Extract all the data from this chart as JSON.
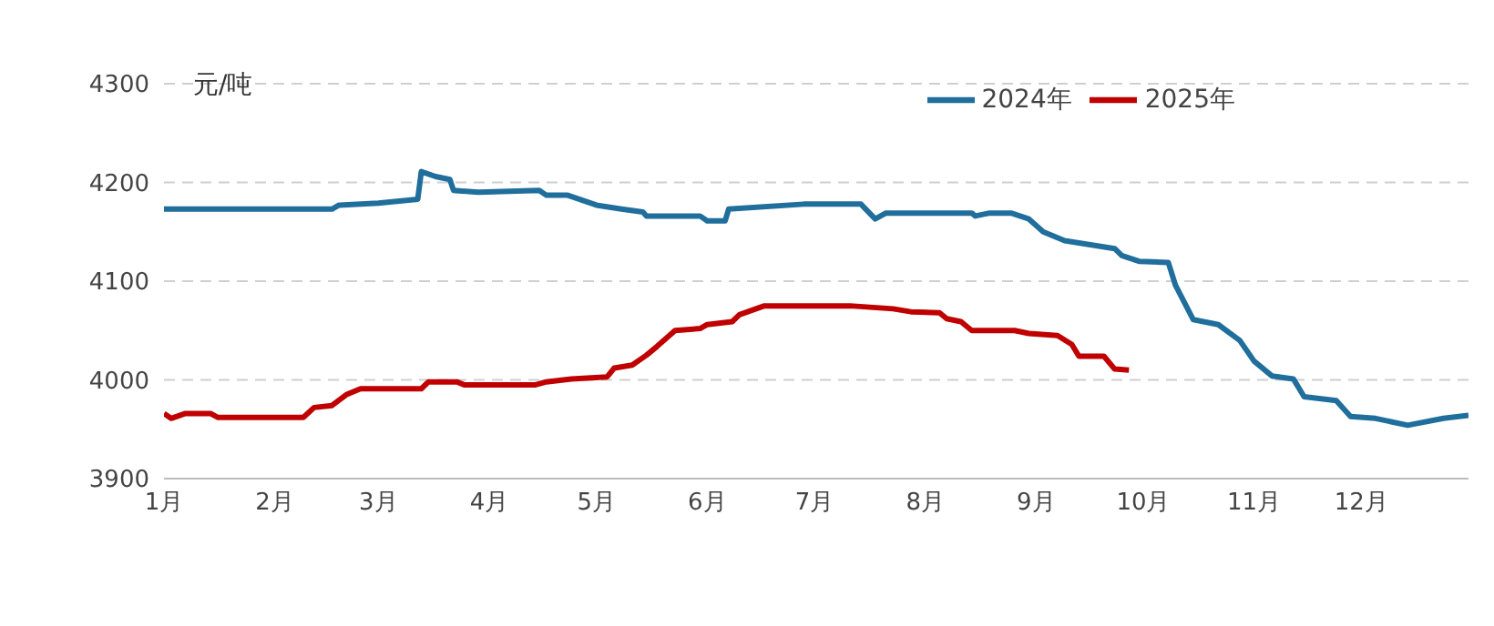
{
  "chart_data": {
    "type": "line",
    "ylabel": "元/吨",
    "xlim": [
      "--01-01",
      "--12-31"
    ],
    "xticks": [
      {
        "value": "--01-01",
        "label": "1月"
      },
      {
        "value": "--02-01",
        "label": "2月"
      },
      {
        "value": "--03-01",
        "label": "3月"
      },
      {
        "value": "--04-01",
        "label": "4月"
      },
      {
        "value": "--05-01",
        "label": "5月"
      },
      {
        "value": "--06-01",
        "label": "6月"
      },
      {
        "value": "--07-01",
        "label": "7月"
      },
      {
        "value": "--08-01",
        "label": "8月"
      },
      {
        "value": "--09-01",
        "label": "9月"
      },
      {
        "value": "--10-01",
        "label": "10月"
      },
      {
        "value": "--11-01",
        "label": "11月"
      },
      {
        "value": "--12-01",
        "label": "12月"
      }
    ],
    "ylim": [
      3900,
      4300
    ],
    "yticks": [
      3900,
      4000,
      4100,
      4200,
      4300
    ],
    "grid": "y",
    "legend": "top right",
    "line_style": "solid",
    "marker": "none",
    "series": [
      {
        "name": "2024年",
        "color": "#1f6e9c",
        "x": [
          "--01-01",
          "--02-17",
          "--02-19",
          "--03-01",
          "--03-12",
          "--03-13",
          "--03-17",
          "--03-21",
          "--03-22",
          "--03-29",
          "--04-15",
          "--04-17",
          "--04-23",
          "--05-01",
          "--05-08",
          "--05-14",
          "--05-15",
          "--05-30",
          "--06-01",
          "--06-06",
          "--06-07",
          "--06-28",
          "--07-14",
          "--07-18",
          "--07-21",
          "--08-14",
          "--08-15",
          "--08-19",
          "--08-25",
          "--08-30",
          "--09-03",
          "--09-09",
          "--09-23",
          "--09-25",
          "--09-30",
          "--10-08",
          "--10-10",
          "--10-15",
          "--10-22",
          "--10-28",
          "--11-01",
          "--11-06",
          "--11-12",
          "--11-15",
          "--11-24",
          "--11-28",
          "--12-05",
          "--12-14",
          "--12-24",
          "--12-31"
        ],
        "values": [
          4173,
          4173,
          4177,
          4179,
          4183,
          4211,
          4206,
          4203,
          4192,
          4190,
          4192,
          4187,
          4187,
          4177,
          4173,
          4170,
          4166,
          4166,
          4161,
          4161,
          4173,
          4178,
          4178,
          4163,
          4169,
          4169,
          4166,
          4169,
          4169,
          4163,
          4150,
          4141,
          4133,
          4126,
          4120,
          4119,
          4096,
          4061,
          4056,
          4040,
          4019,
          4004,
          4001,
          3983,
          3979,
          3963,
          3961,
          3954,
          3961,
          3964
        ]
      },
      {
        "name": "2025年",
        "color": "#c00000",
        "x": [
          "--01-01",
          "--01-03",
          "--01-07",
          "--01-14",
          "--01-16",
          "--02-09",
          "--02-12",
          "--02-17",
          "--02-21",
          "--02-25",
          "--03-13",
          "--03-15",
          "--03-23",
          "--03-25",
          "--04-14",
          "--04-17",
          "--04-24",
          "--05-04",
          "--05-06",
          "--05-11",
          "--05-15",
          "--05-18",
          "--05-23",
          "--05-30",
          "--06-01",
          "--06-08",
          "--06-10",
          "--06-17",
          "--07-11",
          "--07-23",
          "--07-28",
          "--08-05",
          "--08-07",
          "--08-11",
          "--08-14",
          "--08-26",
          "--08-30",
          "--09-07",
          "--09-11",
          "--09-13",
          "--09-20",
          "--09-23",
          "--09-27"
        ],
        "values": [
          3966,
          3961,
          3966,
          3966,
          3962,
          3962,
          3972,
          3974,
          3985,
          3991,
          3991,
          3998,
          3998,
          3995,
          3995,
          3998,
          4001,
          4003,
          4012,
          4015,
          4025,
          4034,
          4050,
          4052,
          4056,
          4059,
          4066,
          4075,
          4075,
          4072,
          4069,
          4068,
          4062,
          4059,
          4050,
          4050,
          4047,
          4045,
          4036,
          4024,
          4024,
          4011,
          4010
        ]
      }
    ]
  }
}
